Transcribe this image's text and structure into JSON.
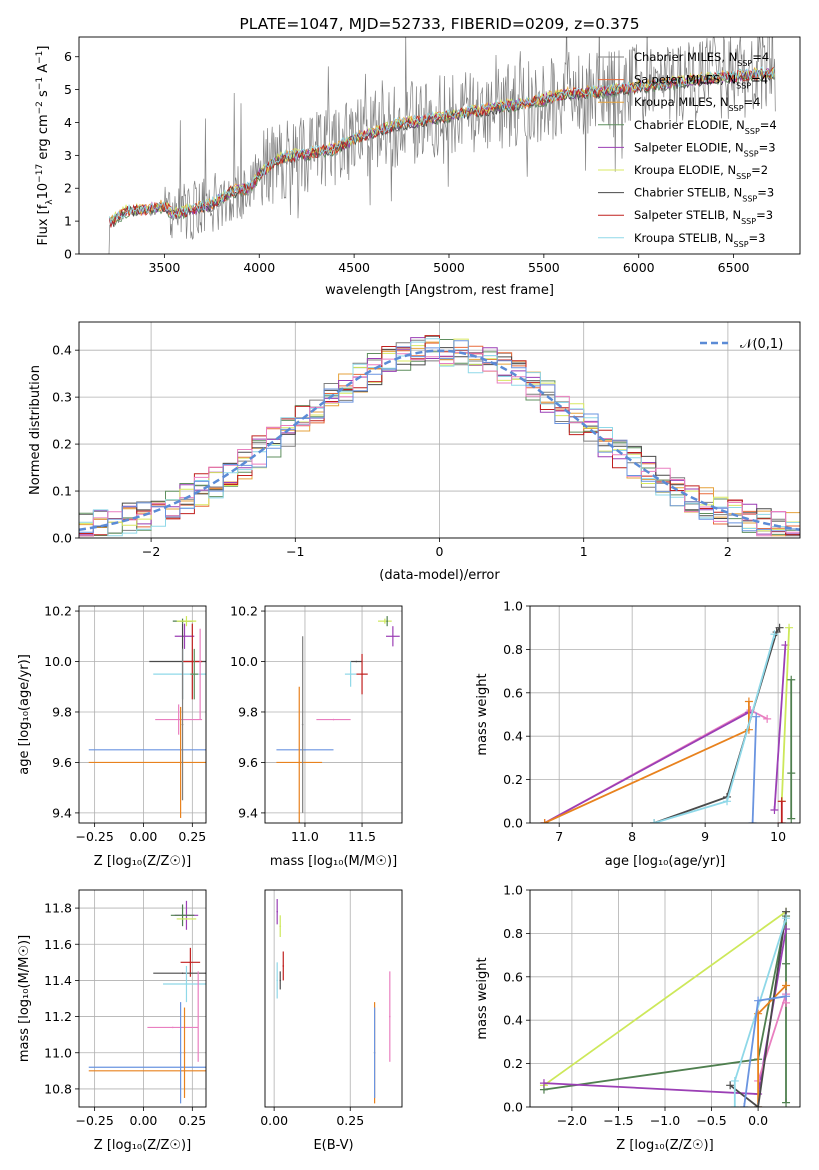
{
  "title": "PLATE=1047, MJD=52733, FIBERID=0209, z=0.375",
  "colors": {
    "Chabrier MILES": "#7f7f7f",
    "Salpeter MILES": "#e86a3a",
    "Kroupa MILES": "#e6a23c",
    "Chabrier ELODIE": "#5f8f5f",
    "Salpeter ELODIE": "#9b3fb5",
    "Kroupa ELODIE": "#d8e860",
    "Chabrier STELIB": "#4a4a4a",
    "Salpeter STELIB": "#c0201f",
    "Kroupa STELIB": "#8fd8e8",
    "normal": "#5b8bd6",
    "pink": "#e97fc0",
    "blue": "#6a94e0",
    "orange": "#e8821e",
    "green": "#4f7f4f",
    "yellow": "#cde85a"
  },
  "chart_data": [
    {
      "id": "spectrum",
      "type": "line",
      "title": "PLATE=1047, MJD=52733, FIBERID=0209, z=0.375",
      "xlabel": "wavelength [Angstrom, rest frame]",
      "ylabel_parts": [
        "Flux [f",
        "λ",
        "10",
        "−17",
        " erg cm",
        "−2",
        " s",
        "−1",
        " A",
        "−1",
        "]"
      ],
      "xlim": [
        3050,
        6850
      ],
      "ylim": [
        0,
        6.6
      ],
      "xticks": [
        3500,
        4000,
        4500,
        5000,
        5500,
        6000,
        6500
      ],
      "yticks": [
        0,
        1,
        2,
        3,
        4,
        5,
        6
      ],
      "data_envelope": {
        "x": [
          3200,
          3300,
          3400,
          3500,
          3550,
          3650,
          3750,
          3850,
          3950,
          4000,
          4100,
          4200,
          4300,
          4400,
          4500,
          4600,
          4700,
          4800,
          4900,
          5000,
          5100,
          5200,
          5300,
          5400,
          5500,
          5600,
          5700,
          5800,
          5900,
          6000,
          6100,
          6200,
          6300,
          6400,
          6500,
          6600,
          6700
        ],
        "y": [
          0.9,
          1.3,
          1.35,
          1.45,
          1.2,
          1.35,
          1.5,
          1.9,
          2.0,
          2.4,
          2.9,
          3.0,
          3.1,
          3.2,
          3.5,
          3.7,
          3.9,
          4.0,
          4.1,
          4.2,
          4.3,
          4.4,
          4.5,
          4.6,
          4.7,
          4.85,
          4.9,
          4.95,
          5.0,
          5.1,
          5.15,
          5.2,
          5.3,
          5.35,
          5.4,
          5.45,
          5.5
        ]
      },
      "legend": [
        {
          "name": "Chabrier MILES",
          "sub": "N",
          "subscript": "SSP",
          "value": "=4"
        },
        {
          "name": "Salpeter MILES",
          "sub": "N",
          "subscript": "SSP",
          "value": "=4"
        },
        {
          "name": "Kroupa MILES",
          "sub": "N",
          "subscript": "SSP",
          "value": "=4"
        },
        {
          "name": "Chabrier ELODIE",
          "sub": "N",
          "subscript": "SSP",
          "value": "=4"
        },
        {
          "name": "Salpeter ELODIE",
          "sub": "N",
          "subscript": "SSP",
          "value": "=3"
        },
        {
          "name": "Kroupa ELODIE",
          "sub": "N",
          "subscript": "SSP",
          "value": "=2"
        },
        {
          "name": "Chabrier STELIB",
          "sub": "N",
          "subscript": "SSP",
          "value": "=3"
        },
        {
          "name": "Salpeter STELIB",
          "sub": "N",
          "subscript": "SSP",
          "value": "=3"
        },
        {
          "name": "Kroupa STELIB",
          "sub": "N",
          "subscript": "SSP",
          "value": "=3"
        }
      ]
    },
    {
      "id": "residuals",
      "type": "line",
      "xlabel": "(data-model)/error",
      "ylabel": "Normed distribution",
      "xlim": [
        -2.5,
        2.5
      ],
      "ylim": [
        0,
        0.46
      ],
      "xticks": [
        -2,
        -1,
        0,
        1,
        2
      ],
      "yticks": [
        0.0,
        0.1,
        0.2,
        0.3,
        0.4
      ],
      "legend_label": "𝒩(0,1)",
      "legend_position": "upper right",
      "grid": true
    },
    {
      "id": "age_vs_Z",
      "type": "scatter",
      "xlabel": "Z [log10(Z/Z☉)]",
      "ylabel": "age  [log10(age/yr)]",
      "xlim": [
        -0.33,
        0.32
      ],
      "ylim": [
        9.36,
        10.22
      ],
      "xticks": [
        -0.25,
        0.0,
        0.25
      ],
      "yticks": [
        9.4,
        9.6,
        9.8,
        10.0,
        10.2
      ],
      "points": [
        {
          "x": 0.2,
          "y": 10.16,
          "xerr": 0.05,
          "yerr": 0.01,
          "c": "green"
        },
        {
          "x": 0.22,
          "y": 10.16,
          "xerr": 0.05,
          "yerr": 0.02,
          "c": "yellow"
        },
        {
          "x": 0.21,
          "y": 10.1,
          "xerr": 0.05,
          "yerr": 0.05,
          "c": "Salpeter ELODIE"
        },
        {
          "x": 0.2,
          "y": 10.0,
          "xerr": 0.17,
          "yerr": 0.15,
          "c": "Chabrier STELIB"
        },
        {
          "x": 0.25,
          "y": 10.0,
          "xerr": 0.05,
          "yerr": 0.15,
          "c": "Salpeter STELIB"
        },
        {
          "x": 0.2,
          "y": 9.95,
          "xerr": 0.15,
          "yerr": 0.1,
          "c": "Kroupa STELIB"
        },
        {
          "x": 0.26,
          "y": 9.95,
          "xerr": 0.02,
          "yerr": 0.1,
          "c": "Chabrier ELODIE"
        },
        {
          "x": 0.18,
          "y": 9.77,
          "xerr": 0.12,
          "yerr": 0.06,
          "c": "pink"
        },
        {
          "x": 0.29,
          "y": 9.95,
          "xerr": 0.0,
          "yerr": 0.18,
          "c": "pink"
        },
        {
          "x": 0.19,
          "y": 9.65,
          "xerr": 0.47,
          "yerr": 0.0,
          "c": "blue"
        },
        {
          "x": 0.19,
          "y": 9.6,
          "xerr": 0.47,
          "yerr": 0.22,
          "c": "orange"
        },
        {
          "x": 0.2,
          "y": 9.75,
          "xerr": 0.0,
          "yerr": 0.3,
          "c": "Chabrier MILES"
        }
      ]
    },
    {
      "id": "age_vs_mass",
      "type": "scatter",
      "xlabel": "mass [log10(M/M☉)]",
      "xlim": [
        10.65,
        11.85
      ],
      "ylim": [
        9.36,
        10.22
      ],
      "xticks": [
        11.0,
        11.5
      ],
      "yticks": [
        9.4,
        9.6,
        9.8,
        10.0,
        10.2
      ],
      "points": [
        {
          "x": 11.7,
          "y": 10.16,
          "xerr": 0.06,
          "yerr": 0.01,
          "c": "yellow"
        },
        {
          "x": 11.77,
          "y": 10.1,
          "xerr": 0.06,
          "yerr": 0.04,
          "c": "Salpeter ELODIE"
        },
        {
          "x": 11.72,
          "y": 10.16,
          "xerr": 0.0,
          "yerr": 0.02,
          "c": "green"
        },
        {
          "x": 11.45,
          "y": 10.0,
          "xerr": 0.05,
          "yerr": 0.0,
          "c": "Chabrier STELIB"
        },
        {
          "x": 11.5,
          "y": 9.95,
          "xerr": 0.05,
          "yerr": 0.08,
          "c": "Salpeter STELIB"
        },
        {
          "x": 11.4,
          "y": 9.95,
          "xerr": 0.05,
          "yerr": 0.05,
          "c": "Kroupa STELIB"
        },
        {
          "x": 11.25,
          "y": 9.77,
          "xerr": 0.15,
          "yerr": 0.0,
          "c": "pink"
        },
        {
          "x": 11.0,
          "y": 9.65,
          "xerr": 0.25,
          "yerr": 0.0,
          "c": "blue"
        },
        {
          "x": 10.95,
          "y": 9.6,
          "xerr": 0.2,
          "yerr": 0.3,
          "c": "orange"
        },
        {
          "x": 10.98,
          "y": 9.75,
          "xerr": 0.0,
          "yerr": 0.35,
          "c": "Chabrier MILES"
        }
      ]
    },
    {
      "id": "weight_vs_age",
      "type": "line",
      "xlabel": "age  [log10(age/yr)]",
      "ylabel": "mass weight",
      "xlim": [
        6.6,
        10.3
      ],
      "ylim": [
        0,
        1
      ],
      "xticks": [
        7,
        8,
        9,
        10
      ],
      "yticks": [
        0.0,
        0.2,
        0.4,
        0.6,
        0.8,
        1.0
      ],
      "series": [
        {
          "c": "pink",
          "x": [
            6.8,
            9.62,
            9.85
          ],
          "y": [
            0.0,
            0.52,
            0.48
          ]
        },
        {
          "c": "Salpeter ELODIE",
          "x": [
            6.8,
            9.6
          ],
          "y": [
            0.0,
            0.51
          ]
        },
        {
          "c": "orange",
          "x": [
            6.8,
            9.6,
            9.6
          ],
          "y": [
            0.0,
            0.43,
            0.56
          ]
        },
        {
          "c": "Chabrier STELIB",
          "x": [
            8.3,
            9.3,
            9.98,
            10.02
          ],
          "y": [
            0.0,
            0.12,
            0.88,
            0.9
          ]
        },
        {
          "c": "Kroupa STELIB",
          "x": [
            8.3,
            9.3,
            9.95
          ],
          "y": [
            0.0,
            0.1,
            0.87
          ]
        },
        {
          "c": "Salpeter ELODIE",
          "x": [
            9.95,
            10.1
          ],
          "y": [
            0.06,
            0.82
          ]
        },
        {
          "c": "yellow",
          "x": [
            10.05,
            10.15
          ],
          "y": [
            0.1,
            0.9
          ]
        },
        {
          "c": "green",
          "x": [
            10.18,
            10.18,
            10.18
          ],
          "y": [
            0.02,
            0.23,
            0.66
          ]
        },
        {
          "c": "Salpeter STELIB",
          "x": [
            10.05,
            10.05
          ],
          "y": [
            0.1,
            0.0
          ]
        },
        {
          "c": "blue",
          "x": [
            9.65,
            9.7
          ],
          "y": [
            0.0,
            0.49
          ]
        }
      ]
    },
    {
      "id": "mass_vs_Z",
      "type": "scatter",
      "xlabel": "Z [log10(Z/Z☉)]",
      "ylabel": "mass [log10(M/M☉)]",
      "xlim": [
        -0.33,
        0.32
      ],
      "ylim": [
        10.7,
        11.9
      ],
      "xticks": [
        -0.25,
        0.0,
        0.25
      ],
      "yticks": [
        10.8,
        11.0,
        11.2,
        11.4,
        11.6,
        11.8
      ],
      "points": [
        {
          "x": 0.22,
          "y": 11.76,
          "xerr": 0.06,
          "yerr": 0.08,
          "c": "Salpeter ELODIE"
        },
        {
          "x": 0.2,
          "y": 11.76,
          "xerr": 0.06,
          "yerr": 0.06,
          "c": "green"
        },
        {
          "x": 0.22,
          "y": 11.74,
          "xerr": 0.05,
          "yerr": 0.0,
          "c": "yellow"
        },
        {
          "x": 0.24,
          "y": 11.5,
          "xerr": 0.05,
          "yerr": 0.08,
          "c": "Salpeter STELIB"
        },
        {
          "x": 0.2,
          "y": 11.44,
          "xerr": 0.15,
          "yerr": 0.0,
          "c": "Chabrier STELIB"
        },
        {
          "x": 0.22,
          "y": 11.38,
          "xerr": 0.12,
          "yerr": 0.1,
          "c": "Kroupa STELIB"
        },
        {
          "x": 0.15,
          "y": 11.14,
          "xerr": 0.13,
          "yerr": 0.0,
          "c": "pink"
        },
        {
          "x": 0.28,
          "y": 11.2,
          "xerr": 0.0,
          "yerr": 0.25,
          "c": "pink"
        },
        {
          "x": 0.19,
          "y": 10.92,
          "xerr": 0.47,
          "yerr": 0.0,
          "c": "blue"
        },
        {
          "x": 0.19,
          "y": 10.9,
          "xerr": 0.47,
          "yerr": 0.0,
          "c": "orange"
        },
        {
          "x": 0.21,
          "y": 11.0,
          "xerr": 0.0,
          "yerr": 0.25,
          "c": "orange"
        },
        {
          "x": 0.19,
          "y": 11.0,
          "xerr": 0.0,
          "yerr": 0.28,
          "c": "blue"
        }
      ]
    },
    {
      "id": "mass_vs_EBV",
      "type": "scatter",
      "xlabel": "E(B-V)",
      "xlim": [
        -0.03,
        0.42
      ],
      "ylim": [
        10.7,
        11.9
      ],
      "xticks": [
        0.0,
        0.25
      ],
      "points": [
        {
          "x": 0.01,
          "y": 11.78,
          "xerr": 0.0,
          "yerr": 0.07,
          "c": "Salpeter ELODIE"
        },
        {
          "x": 0.02,
          "y": 11.7,
          "xerr": 0.0,
          "yerr": 0.06,
          "c": "yellow"
        },
        {
          "x": 0.03,
          "y": 11.48,
          "xerr": 0.0,
          "yerr": 0.08,
          "c": "Salpeter STELIB"
        },
        {
          "x": 0.01,
          "y": 11.4,
          "xerr": 0.0,
          "yerr": 0.1,
          "c": "Kroupa STELIB"
        },
        {
          "x": 0.02,
          "y": 11.4,
          "xerr": 0.0,
          "yerr": 0.05,
          "c": "Chabrier STELIB"
        },
        {
          "x": 0.38,
          "y": 11.2,
          "xerr": 0.0,
          "yerr": 0.25,
          "c": "pink"
        },
        {
          "x": 0.33,
          "y": 11.0,
          "xerr": 0.0,
          "yerr": 0.28,
          "c": "orange"
        },
        {
          "x": 0.33,
          "y": 11.0,
          "xerr": 0.0,
          "yerr": 0.25,
          "c": "blue"
        }
      ]
    },
    {
      "id": "weight_vs_Z",
      "type": "line",
      "xlabel": "Z [log10(Z/Z☉)]",
      "ylabel": "mass weight",
      "xlim": [
        -2.45,
        0.45
      ],
      "ylim": [
        0,
        1
      ],
      "xticks": [
        -2.0,
        -1.5,
        -1.0,
        -0.5,
        0.0
      ],
      "yticks": [
        0.0,
        0.2,
        0.4,
        0.6,
        0.8,
        1.0
      ],
      "series": [
        {
          "c": "yellow",
          "x": [
            -2.3,
            0.3
          ],
          "y": [
            0.1,
            0.9
          ]
        },
        {
          "c": "green",
          "x": [
            -2.3,
            0.0,
            0.3,
            0.3,
            0.3
          ],
          "y": [
            0.08,
            0.22,
            0.88,
            0.66,
            0.02
          ]
        },
        {
          "c": "Salpeter ELODIE",
          "x": [
            -2.3,
            0.0,
            0.3
          ],
          "y": [
            0.11,
            0.06,
            0.82
          ]
        },
        {
          "c": "pink",
          "x": [
            0.0,
            0.3,
            0.3
          ],
          "y": [
            0.12,
            0.52,
            0.48
          ]
        },
        {
          "c": "orange",
          "x": [
            0.0,
            0.0,
            0.3
          ],
          "y": [
            0.0,
            0.43,
            0.56
          ]
        },
        {
          "c": "Chabrier STELIB",
          "x": [
            -0.3,
            0.0,
            0.3
          ],
          "y": [
            0.1,
            0.0,
            0.9
          ]
        },
        {
          "c": "Kroupa STELIB",
          "x": [
            -0.25,
            -0.25,
            0.3
          ],
          "y": [
            0.0,
            0.12,
            0.87
          ]
        },
        {
          "c": "blue",
          "x": [
            -0.15,
            0.0,
            0.3
          ],
          "y": [
            0.0,
            0.49,
            0.51
          ]
        }
      ]
    }
  ]
}
